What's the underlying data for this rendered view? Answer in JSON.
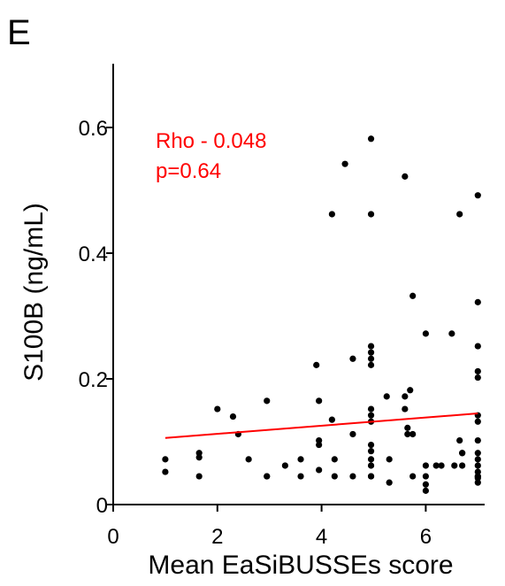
{
  "panel_label": "E",
  "chart_data": {
    "type": "scatter",
    "title": "",
    "xlabel": "Mean EaSiBUSSEs score",
    "ylabel": "S100B (ng/mL)",
    "xlim": [
      0,
      7.3
    ],
    "ylim": [
      0,
      0.68
    ],
    "xticks": [
      0,
      2,
      4,
      6
    ],
    "xtick_labels": [
      "0",
      "2",
      "4",
      "6"
    ],
    "yticks": [
      0,
      0.2,
      0.4,
      0.6
    ],
    "ytick_labels": [
      "0",
      "0.2",
      "0.4",
      "0.6"
    ],
    "grid": false,
    "legend": "none",
    "point_color": "#000000",
    "annotations": {
      "rho": "Rho - 0.048",
      "p": "p=0.64",
      "color": "#ff0000"
    },
    "trend_line": {
      "color": "#ff0000",
      "x": [
        1.0,
        7.0
      ],
      "y": [
        0.106,
        0.145
      ]
    },
    "points": {
      "x": [
        1.0,
        1.0,
        1.65,
        1.65,
        1.65,
        2.0,
        2.3,
        2.4,
        2.6,
        2.95,
        2.95,
        2.95,
        3.3,
        3.6,
        3.6,
        3.9,
        3.95,
        3.95,
        3.95,
        3.95,
        4.2,
        4.2,
        4.25,
        4.25,
        4.45,
        4.6,
        4.6,
        4.6,
        4.95,
        4.95,
        4.95,
        4.95,
        4.95,
        4.95,
        4.95,
        4.95,
        4.95,
        4.95,
        4.95,
        4.95,
        4.95,
        4.95,
        5.25,
        5.3,
        5.3,
        5.6,
        5.6,
        5.6,
        5.65,
        5.65,
        5.7,
        5.75,
        5.75,
        5.75,
        6.0,
        6.0,
        6.0,
        6.0,
        6.0,
        6.2,
        6.3,
        6.5,
        6.55,
        6.65,
        6.65,
        6.7,
        6.7,
        6.7,
        7.0,
        7.0,
        7.0,
        7.0,
        7.0,
        7.0,
        7.0,
        7.0,
        7.0,
        7.0,
        7.0,
        7.0,
        7.0,
        7.0,
        7.0,
        7.0,
        4.95
      ],
      "y": [
        0.072,
        0.052,
        0.082,
        0.075,
        0.045,
        0.152,
        0.14,
        0.112,
        0.072,
        0.165,
        0.045,
        0.045,
        0.062,
        0.072,
        0.045,
        0.222,
        0.165,
        0.102,
        0.095,
        0.055,
        0.462,
        0.135,
        0.072,
        0.045,
        0.542,
        0.232,
        0.112,
        0.045,
        0.582,
        0.462,
        0.252,
        0.242,
        0.232,
        0.222,
        0.152,
        0.142,
        0.132,
        0.095,
        0.085,
        0.072,
        0.062,
        0.045,
        0.172,
        0.072,
        0.035,
        0.522,
        0.172,
        0.152,
        0.122,
        0.112,
        0.182,
        0.332,
        0.112,
        0.045,
        0.272,
        0.062,
        0.045,
        0.032,
        0.022,
        0.062,
        0.062,
        0.272,
        0.062,
        0.462,
        0.102,
        0.082,
        0.082,
        0.062,
        0.492,
        0.322,
        0.252,
        0.212,
        0.202,
        0.142,
        0.132,
        0.102,
        0.082,
        0.072,
        0.062,
        0.052,
        0.045,
        0.042,
        0.035,
        0.045,
        0.045
      ]
    }
  }
}
